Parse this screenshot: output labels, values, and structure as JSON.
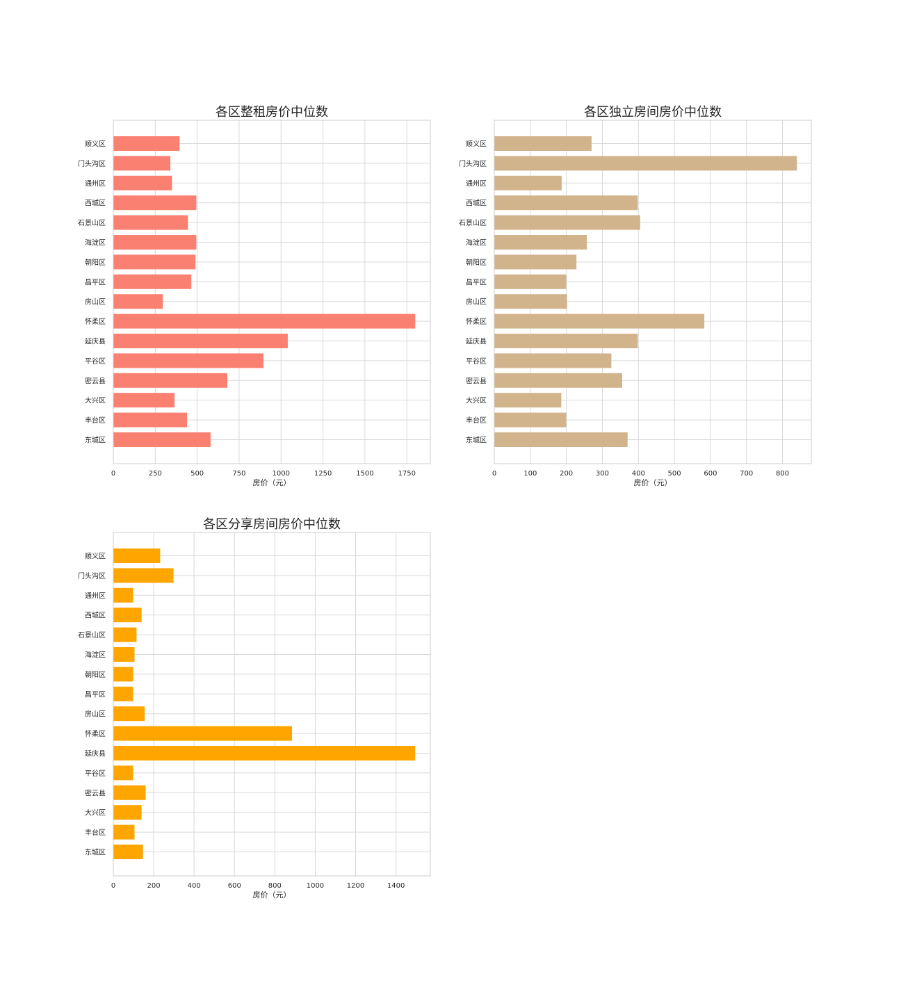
{
  "chart_data": [
    {
      "type": "bar",
      "orientation": "horizontal",
      "title": "各区整租房价中位数",
      "xlabel": "房价（元）",
      "ylabel": "",
      "color": "#FA8072",
      "categories": [
        "顺义区",
        "门头沟区",
        "通州区",
        "西城区",
        "石景山区",
        "海淀区",
        "朝阳区",
        "昌平区",
        "房山区",
        "怀柔区",
        "延庆县",
        "平谷区",
        "密云县",
        "大兴区",
        "丰台区",
        "东城区"
      ],
      "values": [
        395,
        340,
        350,
        495,
        445,
        495,
        490,
        465,
        295,
        1800,
        1040,
        895,
        680,
        365,
        440,
        580
      ],
      "xlim": [
        0,
        1890
      ],
      "xticks": [
        0,
        250,
        500,
        750,
        1000,
        1250,
        1500,
        1750
      ],
      "grid": true
    },
    {
      "type": "bar",
      "orientation": "horizontal",
      "title": "各区独立房间房价中位数",
      "xlabel": "房价（元）",
      "ylabel": "",
      "color": "#D2B48C",
      "categories": [
        "顺义区",
        "门头沟区",
        "通州区",
        "西城区",
        "石景山区",
        "海淀区",
        "朝阳区",
        "昌平区",
        "房山区",
        "怀柔区",
        "延庆县",
        "平谷区",
        "密云县",
        "大兴区",
        "丰台区",
        "东城区"
      ],
      "values": [
        270,
        840,
        187,
        398,
        405,
        257,
        228,
        200,
        202,
        583,
        398,
        325,
        355,
        186,
        200,
        370
      ],
      "xlim": [
        0,
        880
      ],
      "xticks": [
        0,
        100,
        200,
        300,
        400,
        500,
        600,
        700,
        800
      ],
      "grid": true
    },
    {
      "type": "bar",
      "orientation": "horizontal",
      "title": "各区分享房间房价中位数",
      "xlabel": "房价（元）",
      "ylabel": "",
      "color": "#FFA500",
      "categories": [
        "顺义区",
        "门头沟区",
        "通州区",
        "西城区",
        "石景山区",
        "海淀区",
        "朝阳区",
        "昌平区",
        "房山区",
        "怀柔区",
        "延庆县",
        "平谷区",
        "密云县",
        "大兴区",
        "丰台区",
        "东城区"
      ],
      "values": [
        232,
        298,
        98,
        140,
        115,
        105,
        98,
        98,
        155,
        885,
        1495,
        98,
        160,
        140,
        105,
        147
      ],
      "xlim": [
        0,
        1570
      ],
      "xticks": [
        0,
        200,
        400,
        600,
        800,
        1000,
        1200,
        1400
      ],
      "grid": true
    }
  ]
}
